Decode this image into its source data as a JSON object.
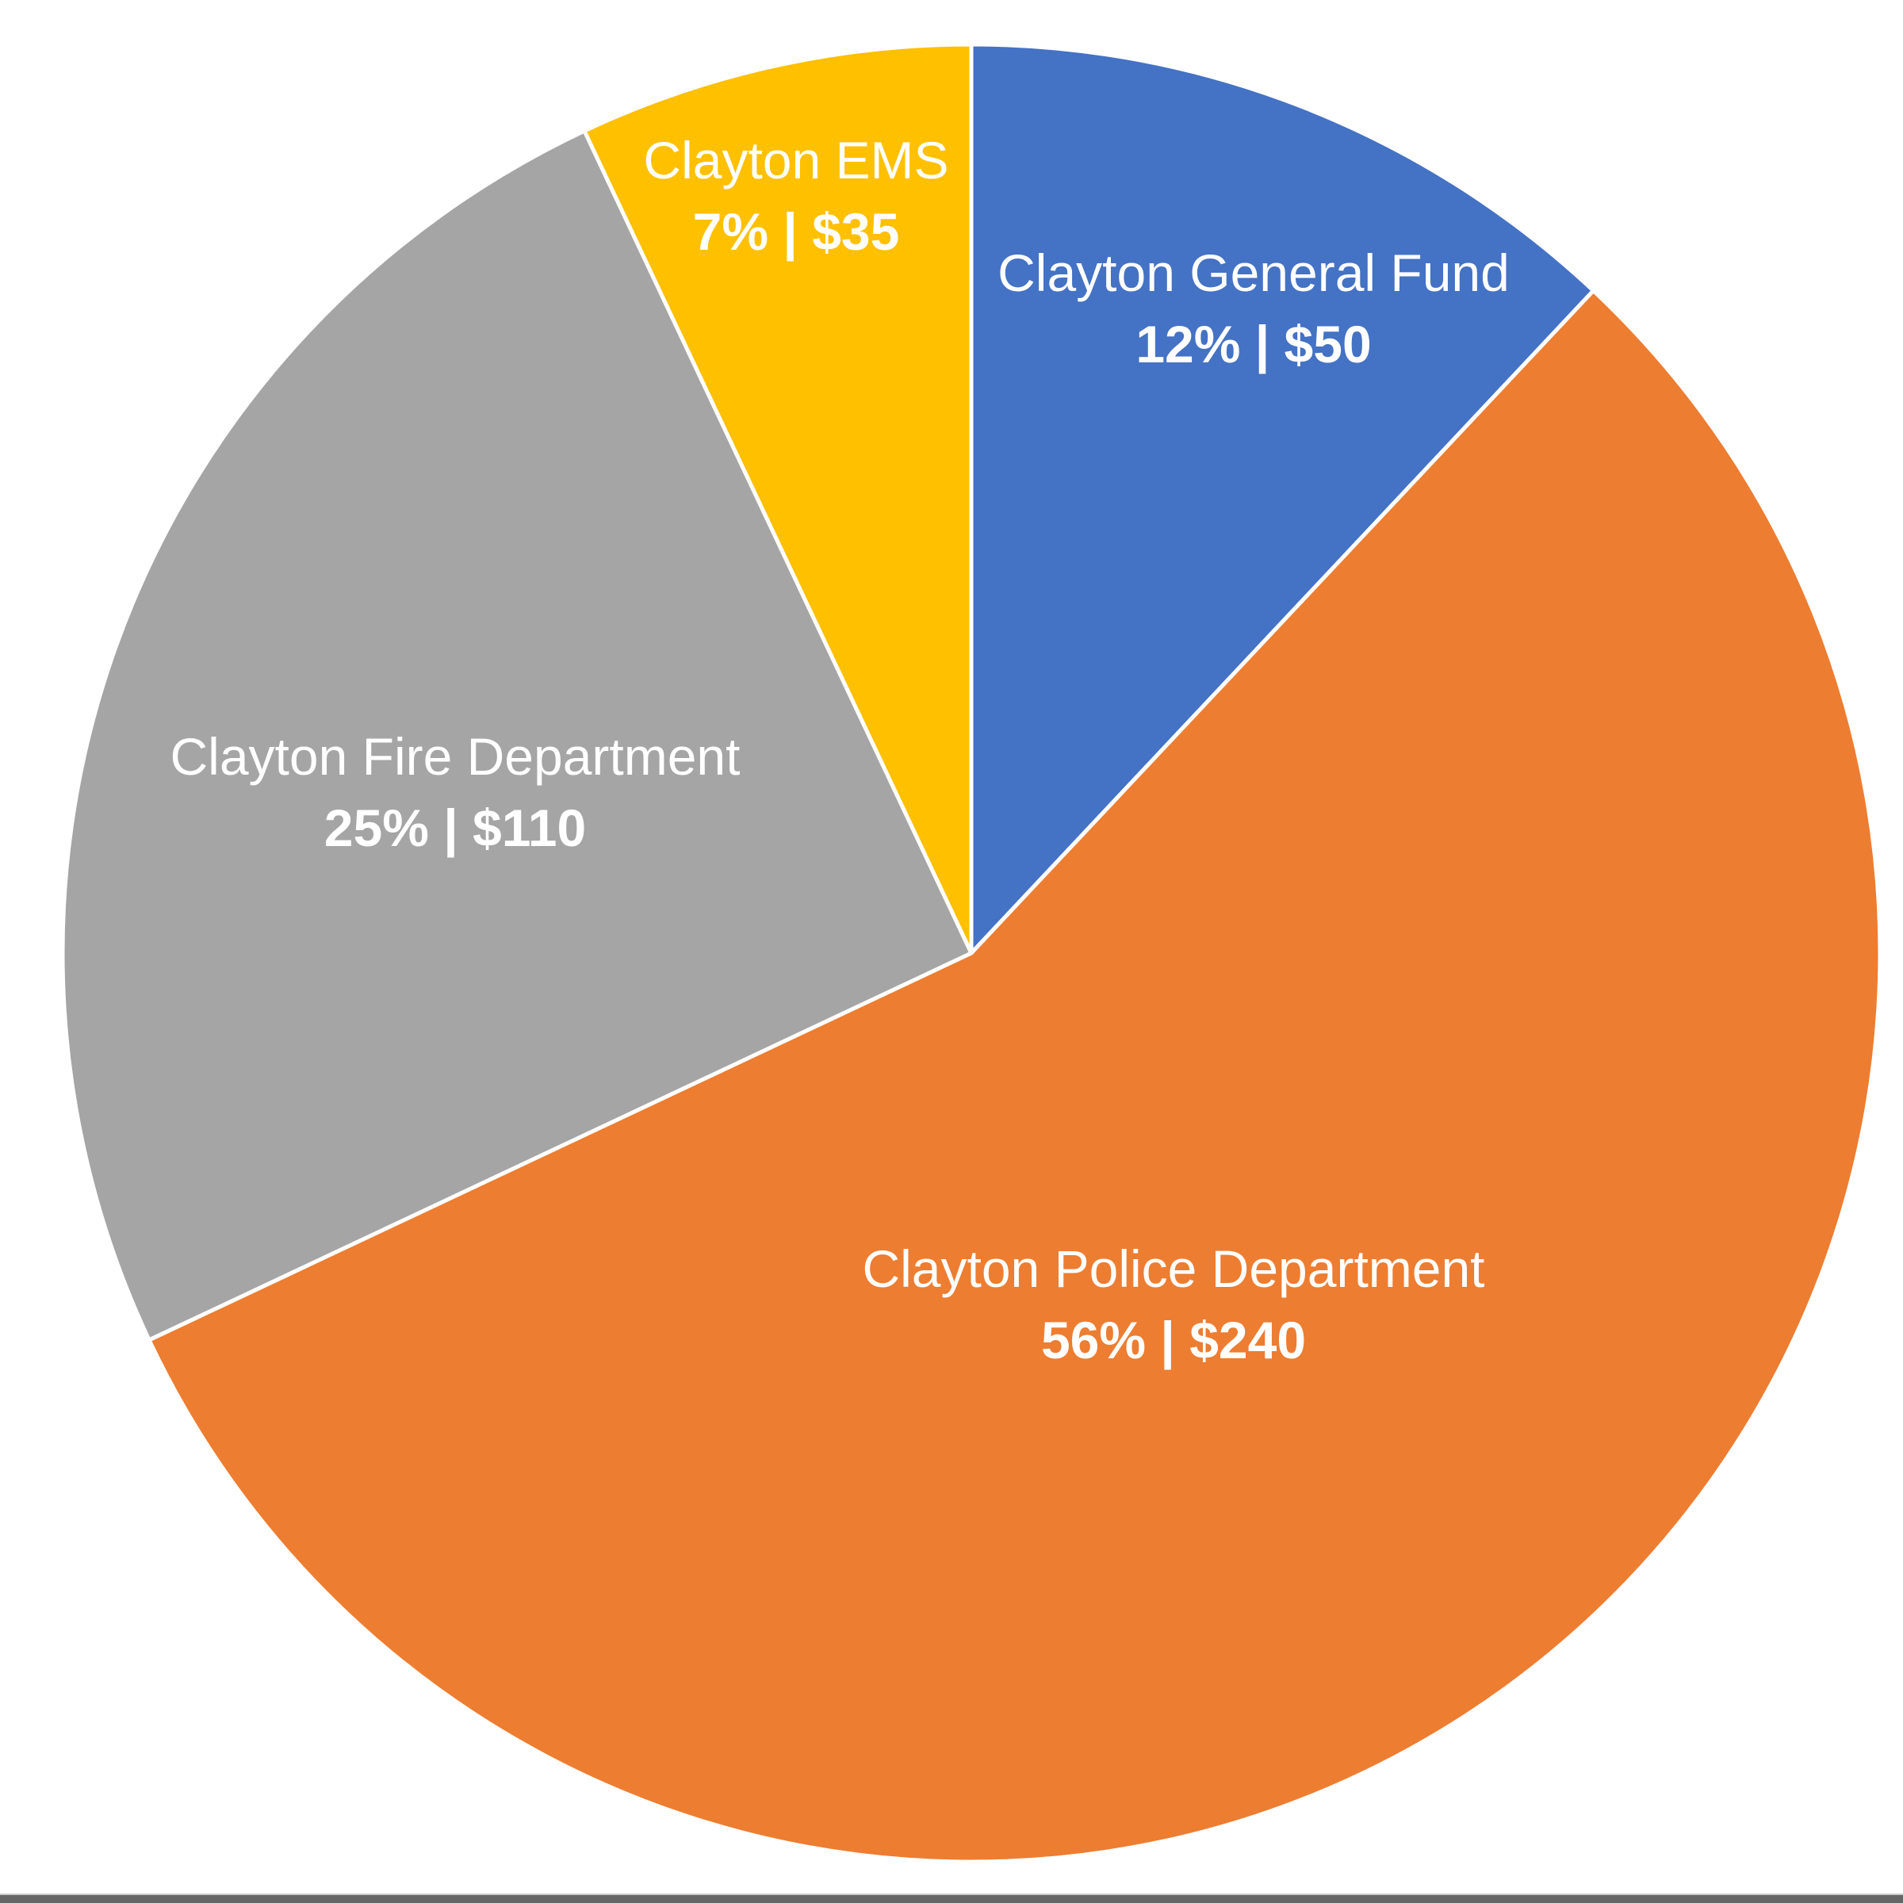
{
  "chart_data": {
    "type": "pie",
    "start_angle": "12 o'clock",
    "direction": "clockwise",
    "slices": [
      {
        "label": "Clayton General Fund",
        "percent": 12,
        "value": 50,
        "value_text": "12% | $50",
        "color": "#4472C4"
      },
      {
        "label": "Clayton Police Department",
        "percent": 56,
        "value": 240,
        "value_text": "56% | $240",
        "color": "#ED7D31"
      },
      {
        "label": "Clayton Fire Department",
        "percent": 25,
        "value": 110,
        "value_text": "25% | $110",
        "color": "#A5A5A5"
      },
      {
        "label": "Clayton EMS",
        "percent": 7,
        "value": 35,
        "value_text": "7% | $35",
        "color": "#FFC000"
      }
    ],
    "legend": "none",
    "separator_color": "#FFFFFF"
  }
}
